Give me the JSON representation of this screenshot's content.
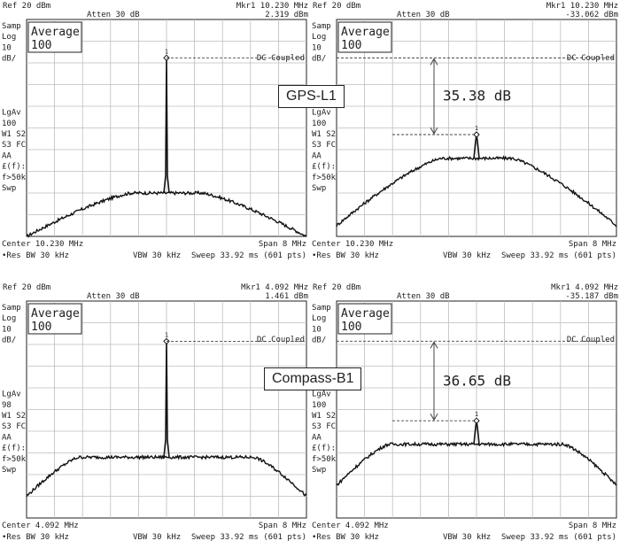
{
  "signal_labels": [
    "GPS-L1",
    "Compass-B1"
  ],
  "panels": [
    {
      "ref": "Ref 20 dBm",
      "atten": "Atten 30 dB",
      "marker": "Mkr1  10.230 MHz",
      "marker_level": "2.319 dBm",
      "avg_title": "Average",
      "avg_count": "100",
      "dc": "DC Coupled",
      "left_text": [
        "Samp",
        "Log",
        "10",
        "dB/",
        "",
        "",
        "",
        "",
        "LgAv",
        "100",
        "W1  S2",
        "S3  FC",
        "   AA",
        "£(f):",
        "f>50k",
        "Swp"
      ],
      "center": "Center 10.230 MHz",
      "span": "Span 8 MHz",
      "rbw": "•Res BW 30 kHz",
      "vbw": "VBW 30 kHz",
      "sweep": "Sweep 33.92 ms (601 pts)",
      "marker_id": "1",
      "annotation": ""
    },
    {
      "ref": "Ref 20 dBm",
      "atten": "Atten 30 dB",
      "marker": "Mkr1  10.230 MHz",
      "marker_level": "-33.062 dBm",
      "avg_title": "Average",
      "avg_count": "100",
      "dc": "DC Coupled",
      "left_text": [
        "Samp",
        "Log",
        "10",
        "dB/",
        "",
        "",
        "",
        "",
        "LgAv",
        "100",
        "W1  S2",
        "S3  FC",
        "   AA",
        "£(f):",
        "f>50k",
        "Swp"
      ],
      "center": "Center 10.230 MHz",
      "span": "Span 8 MHz",
      "rbw": "•Res BW 30 kHz",
      "vbw": "VBW 30 kHz",
      "sweep": "Sweep 33.92 ms (601 pts)",
      "marker_id": "1",
      "annotation": "35.38 dB"
    },
    {
      "ref": "Ref 20 dBm",
      "atten": "Atten 30 dB",
      "marker": "Mkr1  4.092 MHz",
      "marker_level": "1.461 dBm",
      "avg_title": "Average",
      "avg_count": "100",
      "dc": "DC Coupled",
      "left_text": [
        "Samp",
        "Log",
        "10",
        "dB/",
        "",
        "",
        "",
        "",
        "LgAv",
        "98",
        "W1  S2",
        "S3  FC",
        "   AA",
        "£(f):",
        "f>50k",
        "Swp"
      ],
      "center": "Center 4.092 MHz",
      "span": "Span 8 MHz",
      "rbw": "•Res BW 30 kHz",
      "vbw": "VBW 30 kHz",
      "sweep": "Sweep 33.92 ms (601 pts)",
      "marker_id": "1",
      "annotation": ""
    },
    {
      "ref": "Ref 20 dBm",
      "atten": "Atten 30 dB",
      "marker": "Mkr1  4.092 MHz",
      "marker_level": "-35.187 dBm",
      "avg_title": "Average",
      "avg_count": "100",
      "dc": "DC Coupled",
      "left_text": [
        "Samp",
        "Log",
        "10",
        "dB/",
        "",
        "",
        "",
        "",
        "LgAv",
        "100",
        "W1  S2",
        "S3  FC",
        "   AA",
        "£(f):",
        "f>50k",
        "Swp"
      ],
      "center": "Center 4.092 MHz",
      "span": "Span 8 MHz",
      "rbw": "•Res BW 30 kHz",
      "vbw": "VBW 30 kHz",
      "sweep": "Sweep 33.92 ms (601 pts)",
      "marker_id": "1",
      "annotation": "36.65 dB"
    }
  ],
  "chart_data": [
    {
      "type": "line",
      "xlabel": "",
      "ylabel": "",
      "xlim": [
        6.23,
        14.23
      ],
      "ylim": [
        -80,
        20
      ],
      "grid": true,
      "series": [
        {
          "center_mhz": 10.23,
          "span_mhz": 8,
          "peak_dbm": 2.319,
          "plateau_dbm": -60,
          "plateau_halfwidth_mhz": 1.0,
          "edge_dbm": -80,
          "edge_offset_mhz": 4.0
        }
      ]
    },
    {
      "type": "line",
      "xlabel": "",
      "ylabel": "",
      "xlim": [
        6.23,
        14.23
      ],
      "ylim": [
        -80,
        20
      ],
      "grid": true,
      "series": [
        {
          "center_mhz": 10.23,
          "span_mhz": 8,
          "peak_dbm": -33.062,
          "plateau_dbm": -44,
          "plateau_halfwidth_mhz": 1.0,
          "edge_dbm": -75,
          "edge_offset_mhz": 4.0
        }
      ],
      "reference_line_dbm": 2.3,
      "delta_db": 35.38
    },
    {
      "type": "line",
      "xlabel": "",
      "ylabel": "",
      "xlim": [
        0.092,
        8.092
      ],
      "ylim": [
        -80,
        20
      ],
      "grid": true,
      "series": [
        {
          "center_mhz": 4.092,
          "span_mhz": 8,
          "peak_dbm": 1.461,
          "plateau_dbm": -52,
          "plateau_halfwidth_mhz": 2.5,
          "edge_dbm": -70,
          "edge_offset_mhz": 4.0
        }
      ]
    },
    {
      "type": "line",
      "xlabel": "",
      "ylabel": "",
      "xlim": [
        0.092,
        8.092
      ],
      "ylim": [
        -80,
        20
      ],
      "grid": true,
      "series": [
        {
          "center_mhz": 4.092,
          "span_mhz": 8,
          "peak_dbm": -35.187,
          "plateau_dbm": -46,
          "plateau_halfwidth_mhz": 2.5,
          "edge_dbm": -65,
          "edge_offset_mhz": 4.0
        }
      ],
      "reference_line_dbm": 1.5,
      "delta_db": 36.65
    }
  ]
}
